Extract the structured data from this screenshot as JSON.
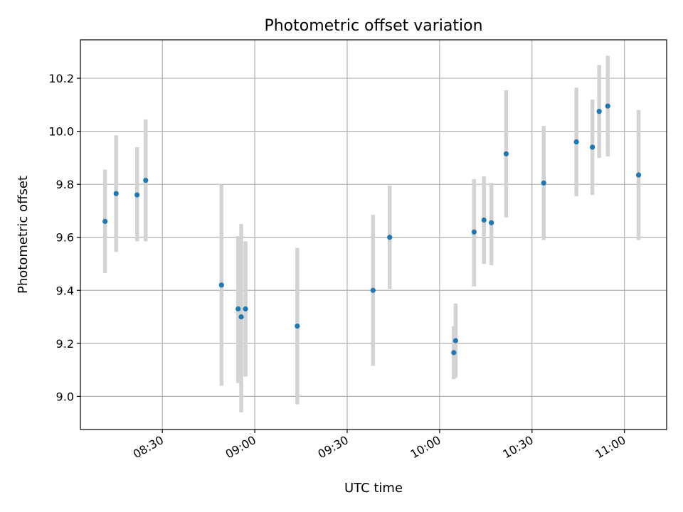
{
  "chart_data": {
    "type": "scatter",
    "title": "Photometric offset variation",
    "xlabel": "UTC time",
    "ylabel": "Photometric offset",
    "x_ticks": [
      "08:30",
      "09:00",
      "09:30",
      "10:00",
      "10:30",
      "11:00"
    ],
    "y_ticks": [
      "9.0",
      "9.2",
      "9.4",
      "9.6",
      "9.8",
      "10.0",
      "10.2"
    ],
    "xlim": [
      "08:03:24",
      "11:13:42"
    ],
    "ylim": [
      8.875,
      10.345
    ],
    "grid": true,
    "marker_color": "#1f77b4",
    "errorbar_color": "#d3d3d3",
    "series": [
      {
        "points": [
          {
            "x": "08:11:24",
            "y": 9.66,
            "err_low": 9.465,
            "err_high": 9.855
          },
          {
            "x": "08:15:00",
            "y": 9.765,
            "err_low": 9.545,
            "err_high": 9.985
          },
          {
            "x": "08:21:48",
            "y": 9.76,
            "err_low": 9.585,
            "err_high": 9.94
          },
          {
            "x": "08:24:36",
            "y": 9.815,
            "err_low": 9.585,
            "err_high": 10.045
          },
          {
            "x": "08:49:12",
            "y": 9.42,
            "err_low": 9.04,
            "err_high": 9.8
          },
          {
            "x": "08:54:36",
            "y": 9.33,
            "err_low": 9.05,
            "err_high": 9.605
          },
          {
            "x": "08:55:36",
            "y": 9.3,
            "err_low": 8.94,
            "err_high": 9.65
          },
          {
            "x": "08:57:00",
            "y": 9.33,
            "err_low": 9.075,
            "err_high": 9.585
          },
          {
            "x": "09:13:48",
            "y": 9.265,
            "err_low": 8.97,
            "err_high": 9.56
          },
          {
            "x": "09:38:24",
            "y": 9.4,
            "err_low": 9.115,
            "err_high": 9.685
          },
          {
            "x": "09:43:48",
            "y": 9.6,
            "err_low": 9.405,
            "err_high": 9.795
          },
          {
            "x": "10:04:36",
            "y": 9.165,
            "err_low": 9.065,
            "err_high": 9.265
          },
          {
            "x": "10:05:12",
            "y": 9.21,
            "err_low": 9.07,
            "err_high": 9.35
          },
          {
            "x": "10:11:12",
            "y": 9.62,
            "err_low": 9.415,
            "err_high": 9.82
          },
          {
            "x": "10:14:24",
            "y": 9.665,
            "err_low": 9.5,
            "err_high": 9.83
          },
          {
            "x": "10:16:48",
            "y": 9.655,
            "err_low": 9.495,
            "err_high": 9.805
          },
          {
            "x": "10:21:36",
            "y": 9.915,
            "err_low": 9.675,
            "err_high": 10.155
          },
          {
            "x": "10:33:48",
            "y": 9.805,
            "err_low": 9.59,
            "err_high": 10.02
          },
          {
            "x": "10:44:24",
            "y": 9.96,
            "err_low": 9.755,
            "err_high": 10.165
          },
          {
            "x": "10:49:36",
            "y": 9.94,
            "err_low": 9.76,
            "err_high": 10.12
          },
          {
            "x": "10:51:48",
            "y": 10.075,
            "err_low": 9.9,
            "err_high": 10.25
          },
          {
            "x": "10:54:36",
            "y": 10.095,
            "err_low": 9.905,
            "err_high": 10.285
          },
          {
            "x": "11:04:36",
            "y": 9.835,
            "err_low": 9.59,
            "err_high": 10.08
          }
        ]
      }
    ]
  }
}
